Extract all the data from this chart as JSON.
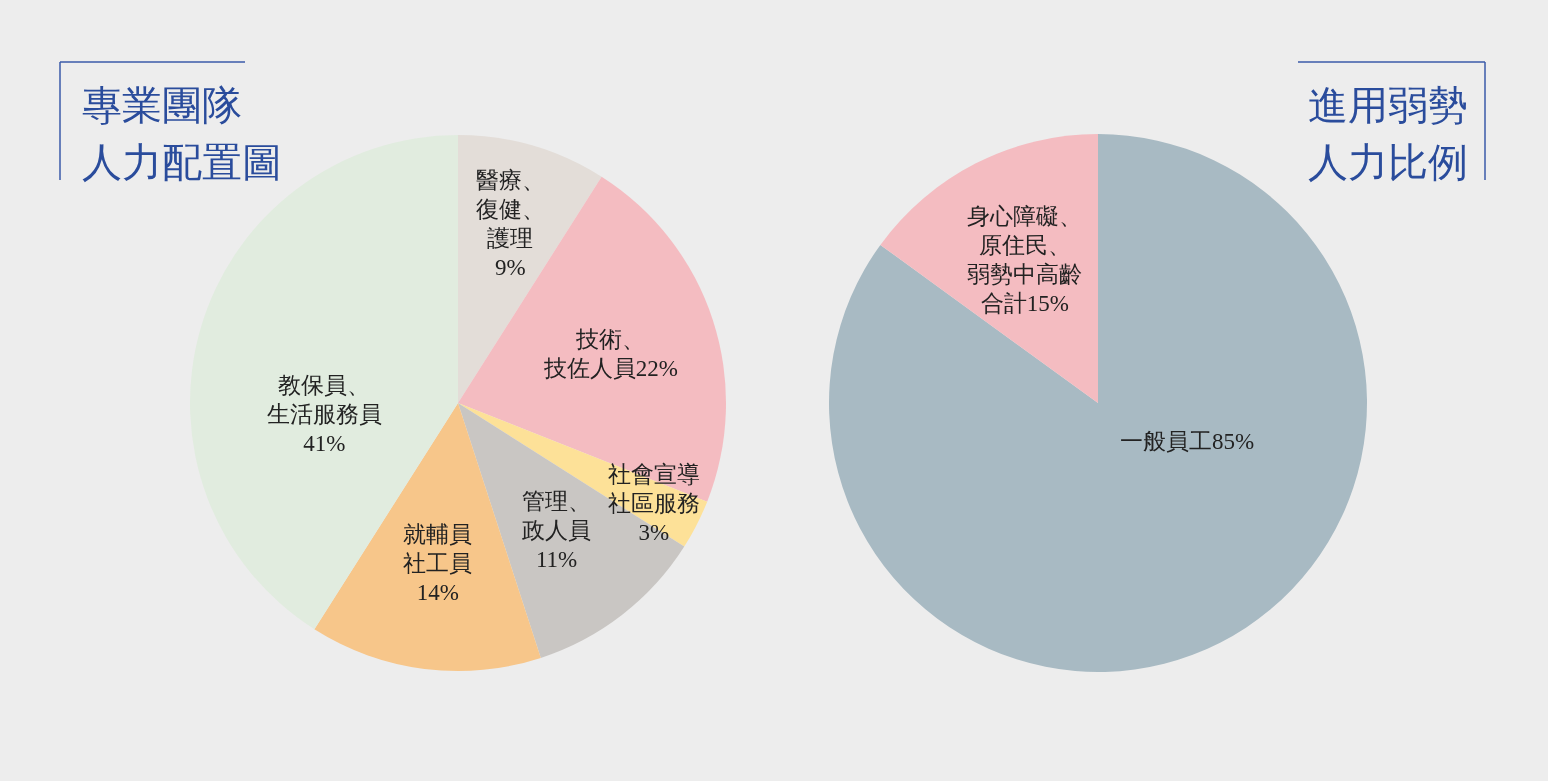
{
  "chart_data": [
    {
      "type": "pie",
      "title": "專業團隊人力配置圖",
      "categories": [
        "醫療、復健、護理",
        "技術、技佐人員",
        "社會宣導社區服務",
        "管理、政人員",
        "就輔員社工員",
        "教保員、生活服務員"
      ],
      "values": [
        9,
        22,
        3,
        11,
        14,
        41
      ],
      "colors": [
        "#e3ddd8",
        "#f4bcc1",
        "#fde198",
        "#c9c6c3",
        "#f7c68a",
        "#e1ecdf"
      ],
      "value_labels": [
        "9%",
        "22%",
        "3%",
        "11%",
        "14%",
        "41%"
      ]
    },
    {
      "type": "pie",
      "title": "進用弱勢人力比例",
      "categories": [
        "一般員工",
        "身心障礙、原住民、弱勢中高齡"
      ],
      "values": [
        85,
        15
      ],
      "colors": [
        "#a8bac3",
        "#f4bcc1"
      ],
      "value_labels": [
        "85%",
        "合計15%"
      ]
    }
  ]
}
